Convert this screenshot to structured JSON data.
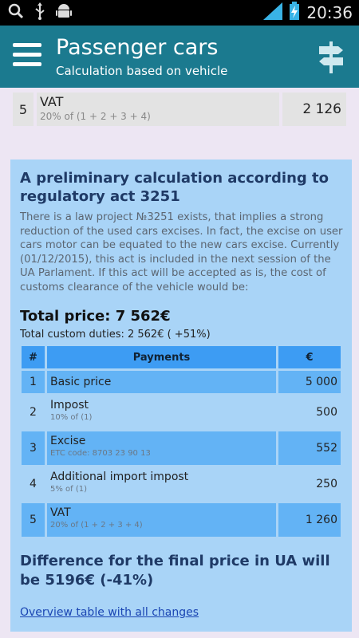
{
  "status_bar": {
    "left_icons": [
      "search-icon",
      "usb-icon",
      "android-icon"
    ],
    "right_icons": [
      "signal-icon",
      "battery-charging-icon"
    ],
    "time": "20:36"
  },
  "header": {
    "title": "Passenger cars",
    "subtitle": "Calculation based on vehicle"
  },
  "top_row": {
    "num": "5",
    "label": "VAT",
    "note": "20% of (1 + 2 + 3 + 4)",
    "value": "2 126"
  },
  "card": {
    "title": "A preliminary calculation according to regulatory act 3251",
    "description": "There is a law project №3251 exists, that implies a strong reduction of the used cars excises. In fact, the excise on user cars motor can be equated to the new cars excise. Currently (01/12/2015), this act is included in the next session of the UA Parlament. If this act will be accepted as is, the cost of customs clearance of the vehicle would be:",
    "total_price": "Total price: 7 562€",
    "total_duties": "Total custom duties: 2 562€ ( +51%)",
    "table": {
      "headers": {
        "num": "#",
        "payments": "Payments",
        "currency": "€"
      },
      "rows": [
        {
          "num": "1",
          "label": "Basic price",
          "note": "",
          "value": "5 000"
        },
        {
          "num": "2",
          "label": "Impost",
          "note": "10% of (1)",
          "value": "500"
        },
        {
          "num": "3",
          "label": "Excise",
          "note": "ETC code: 8703 23 90 13",
          "value": "552"
        },
        {
          "num": "4",
          "label": "Additional import impost",
          "note": "5% of (1)",
          "value": "250"
        },
        {
          "num": "5",
          "label": "VAT",
          "note": "20% of (1 + 2 + 3 + 4)",
          "value": "1 260"
        }
      ]
    },
    "difference": "Difference for the final price in UA will be 5196€ (-41%)",
    "link": "Overview table with all changes"
  }
}
